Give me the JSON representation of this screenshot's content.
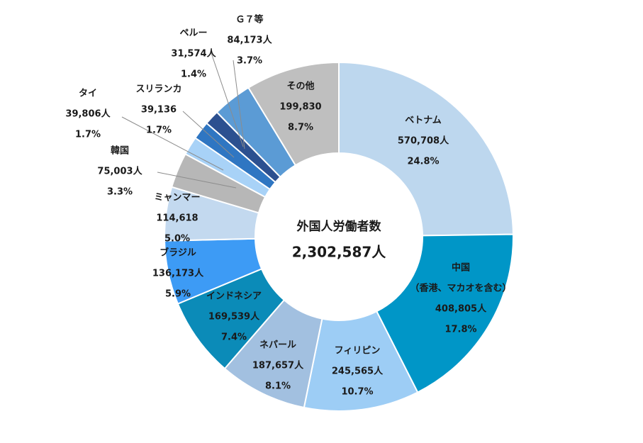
{
  "chart_data": {
    "type": "pie",
    "center_title": "外国人労働者数",
    "center_total": "2,302,587人",
    "slices": [
      {
        "name": "ベトナム",
        "value_label": "570,708人",
        "percent_label": "24.8%",
        "value": 570708,
        "color": "#bdd7ee"
      },
      {
        "name": "中国",
        "subname": "（香港、マカオを含む）",
        "value_label": "408,805人",
        "percent_label": "17.8%",
        "value": 408805,
        "color": "#0096c7"
      },
      {
        "name": "フィリピン",
        "value_label": "245,565人",
        "percent_label": "10.7%",
        "value": 245565,
        "color": "#9dcdf5"
      },
      {
        "name": "ネパール",
        "value_label": "187,657人",
        "percent_label": "8.1%",
        "value": 187657,
        "color": "#a2c0e0"
      },
      {
        "name": "インドネシア",
        "value_label": "169,539人",
        "percent_label": "7.4%",
        "value": 169539,
        "color": "#0b8bb8"
      },
      {
        "name": "ブラジル",
        "value_label": "136,173人",
        "percent_label": "5.9%",
        "value": 136173,
        "color": "#3d9bf5"
      },
      {
        "name": "ミャンマー",
        "value_label": "114,618",
        "percent_label": "5.0%",
        "value": 114618,
        "color": "#c3d9ef"
      },
      {
        "name": "韓国",
        "value_label": "75,003人",
        "percent_label": "3.3%",
        "value": 75003,
        "color": "#b7b7b7"
      },
      {
        "name": "タイ",
        "value_label": "39,806人",
        "percent_label": "1.7%",
        "value": 39806,
        "color": "#a8d2f7"
      },
      {
        "name": "スリランカ",
        "value_label": "39,136",
        "percent_label": "1.7%",
        "value": 39136,
        "color": "#2f76c2"
      },
      {
        "name": "ペルー",
        "value_label": "31,574人",
        "percent_label": "1.4%",
        "value": 31574,
        "color": "#2c5090"
      },
      {
        "name": "Ｇ７等",
        "value_label": "84,173人",
        "percent_label": "3.7%",
        "value": 84173,
        "color": "#5b9bd5"
      },
      {
        "name": "その他",
        "value_label": "199,830",
        "percent_label": "8.7%",
        "value": 199830,
        "color": "#bfbfbf"
      }
    ]
  }
}
